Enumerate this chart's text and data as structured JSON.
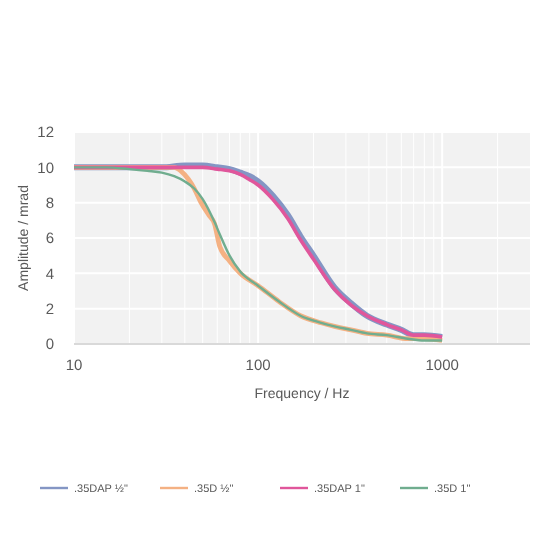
{
  "chart_data": {
    "type": "line",
    "xlabel": "Frequency / Hz",
    "ylabel": "Amplitude / mrad",
    "log": "x",
    "xlim": [
      10,
      3000
    ],
    "xticks": [
      10,
      100,
      1000
    ],
    "ylim": [
      0,
      12
    ],
    "yticks": [
      0,
      2,
      4,
      6,
      8,
      10,
      12
    ],
    "grid": true,
    "legend": "bottom",
    "series": [
      {
        "name": ".35DAP ½\"",
        "color": "#8496c4",
        "x": [
          10,
          20,
          30,
          40,
          50,
          60,
          70,
          80,
          90,
          100,
          120,
          145,
          170,
          200,
          260,
          320,
          390,
          500,
          600,
          700,
          800,
          1000
        ],
        "values": [
          10,
          10,
          10,
          10.1,
          10.1,
          10,
          9.9,
          9.7,
          9.5,
          9.2,
          8.4,
          7.3,
          6.1,
          5,
          3.2,
          2.3,
          1.6,
          1.1,
          0.8,
          0.5,
          0.5,
          0.4
        ]
      },
      {
        "name": ".35D ½\"",
        "color": "#f4b183",
        "x": [
          10,
          20,
          30,
          35,
          38,
          42,
          45,
          49,
          54,
          58,
          62,
          70,
          80,
          100,
          130,
          170,
          220,
          260,
          320,
          390,
          500,
          650,
          800,
          1000
        ],
        "values": [
          10,
          10,
          10,
          10,
          9.8,
          9.3,
          8.8,
          8,
          7.3,
          6.8,
          5.5,
          4.7,
          4.0,
          3.3,
          2.4,
          1.6,
          1.2,
          1.0,
          0.8,
          0.6,
          0.5,
          0.3,
          0.3,
          0.2
        ]
      },
      {
        "name": ".35DAP 1\"",
        "color": "#e0569b",
        "x": [
          10,
          20,
          30,
          40,
          50,
          60,
          70,
          80,
          90,
          100,
          120,
          145,
          170,
          200,
          260,
          320,
          390,
          500,
          600,
          700,
          800,
          1000
        ],
        "values": [
          10,
          10,
          10,
          10,
          10,
          9.9,
          9.8,
          9.6,
          9.3,
          9.0,
          8.2,
          7.1,
          5.9,
          4.8,
          3.1,
          2.2,
          1.6,
          1.1,
          0.8,
          0.5,
          0.5,
          0.4
        ]
      },
      {
        "name": ".35D 1\"",
        "color": "#70ad8f",
        "x": [
          10,
          15,
          20,
          25,
          30,
          35,
          40,
          45,
          50,
          58,
          62,
          70,
          80,
          100,
          130,
          170,
          220,
          260,
          320,
          390,
          500,
          650,
          800,
          1000
        ],
        "values": [
          10,
          10,
          9.9,
          9.8,
          9.7,
          9.5,
          9.2,
          8.8,
          8.2,
          6.9,
          6.2,
          5.0,
          4.1,
          3.3,
          2.4,
          1.6,
          1.2,
          1.0,
          0.8,
          0.6,
          0.5,
          0.3,
          0.2,
          0.2
        ]
      }
    ]
  }
}
